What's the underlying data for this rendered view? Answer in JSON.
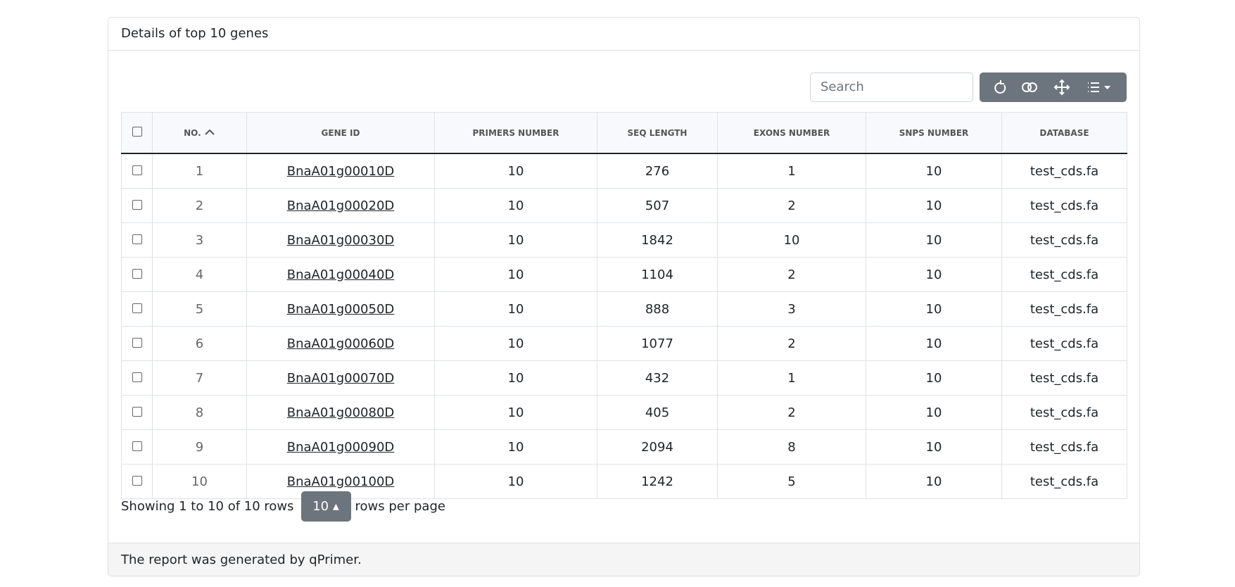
{
  "card": {
    "title": "Details of top 10 genes",
    "footer": "The report was generated by qPrimer."
  },
  "toolbar": {
    "search_placeholder": "Search"
  },
  "table": {
    "columns": [
      "NO.",
      "GENE ID",
      "PRIMERS NUMBER",
      "SEQ LENGTH",
      "EXONS NUMBER",
      "SNPS NUMBER",
      "DATABASE"
    ],
    "rows": [
      [
        1,
        "BnaA01g00010D",
        10,
        276,
        1,
        10,
        "test_cds.fa"
      ],
      [
        2,
        "BnaA01g00020D",
        10,
        507,
        2,
        10,
        "test_cds.fa"
      ],
      [
        3,
        "BnaA01g00030D",
        10,
        1842,
        10,
        10,
        "test_cds.fa"
      ],
      [
        4,
        "BnaA01g00040D",
        10,
        1104,
        2,
        10,
        "test_cds.fa"
      ],
      [
        5,
        "BnaA01g00050D",
        10,
        888,
        3,
        10,
        "test_cds.fa"
      ],
      [
        6,
        "BnaA01g00060D",
        10,
        1077,
        2,
        10,
        "test_cds.fa"
      ],
      [
        7,
        "BnaA01g00070D",
        10,
        432,
        1,
        10,
        "test_cds.fa"
      ],
      [
        8,
        "BnaA01g00080D",
        10,
        405,
        2,
        10,
        "test_cds.fa"
      ],
      [
        9,
        "BnaA01g00090D",
        10,
        2094,
        8,
        10,
        "test_cds.fa"
      ],
      [
        10,
        "BnaA01g00100D",
        10,
        1242,
        5,
        10,
        "test_cds.fa"
      ]
    ]
  },
  "pagination": {
    "summary": "Showing 1 to 10 of 10 rows",
    "page_size": 10,
    "suffix": "rows per page"
  }
}
